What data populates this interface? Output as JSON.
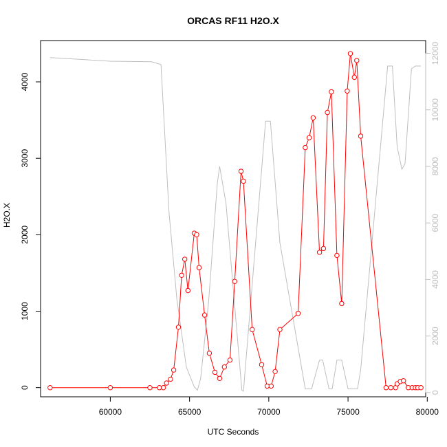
{
  "chart_data": {
    "type": "line",
    "title": "ORCAS RF11 H2O.X",
    "xlabel": "UTC Seconds",
    "ylabel": "H2O.X",
    "xlim": [
      55600,
      79900
    ],
    "ylim": [
      -120,
      4540
    ],
    "y2lim": [
      -150,
      12450
    ],
    "x_ticks": [
      60000,
      65000,
      70000,
      75000,
      80000
    ],
    "y_ticks": [
      0,
      1000,
      2000,
      3000,
      4000
    ],
    "y2_ticks": [
      0,
      2000,
      4000,
      6000,
      8000,
      10000,
      12000
    ],
    "colors": {
      "primary": "#ff0000",
      "secondary": "#bebebe",
      "axis": "#000000"
    },
    "series": [
      {
        "axis": "left",
        "color": "#ff0000",
        "style": "line+points",
        "points": [
          [
            56200,
            0
          ],
          [
            60000,
            0
          ],
          [
            62500,
            0
          ],
          [
            63100,
            0
          ],
          [
            63350,
            0
          ],
          [
            63550,
            60
          ],
          [
            63800,
            110
          ],
          [
            64000,
            230
          ],
          [
            64300,
            790
          ],
          [
            64500,
            1470
          ],
          [
            64700,
            1680
          ],
          [
            64900,
            1270
          ],
          [
            65300,
            2020
          ],
          [
            65450,
            2000
          ],
          [
            65600,
            1570
          ],
          [
            65950,
            950
          ],
          [
            66250,
            450
          ],
          [
            66600,
            200
          ],
          [
            66900,
            120
          ],
          [
            67200,
            270
          ],
          [
            67550,
            360
          ],
          [
            67850,
            1390
          ],
          [
            68250,
            2830
          ],
          [
            68400,
            2700
          ],
          [
            68950,
            760
          ],
          [
            69550,
            300
          ],
          [
            69900,
            20
          ],
          [
            70150,
            20
          ],
          [
            70400,
            210
          ],
          [
            70700,
            760
          ],
          [
            71850,
            970
          ],
          [
            72300,
            3140
          ],
          [
            72550,
            3270
          ],
          [
            72800,
            3530
          ],
          [
            73200,
            1770
          ],
          [
            73450,
            1820
          ],
          [
            73700,
            3600
          ],
          [
            73950,
            3870
          ],
          [
            74300,
            1730
          ],
          [
            74600,
            1100
          ],
          [
            74950,
            3880
          ],
          [
            75150,
            4370
          ],
          [
            75400,
            4060
          ],
          [
            75550,
            4280
          ],
          [
            75800,
            3290
          ],
          [
            77400,
            0
          ],
          [
            77700,
            0
          ],
          [
            78000,
            0
          ],
          [
            78100,
            50
          ],
          [
            78300,
            80
          ],
          [
            78500,
            90
          ],
          [
            78800,
            0
          ],
          [
            79050,
            0
          ],
          [
            79250,
            0
          ],
          [
            79400,
            0
          ],
          [
            79600,
            0
          ]
        ]
      },
      {
        "axis": "right",
        "color": "#bebebe",
        "style": "line",
        "points": [
          [
            56200,
            11850
          ],
          [
            60000,
            11720
          ],
          [
            62600,
            11700
          ],
          [
            63200,
            11600
          ],
          [
            63700,
            6400
          ],
          [
            64200,
            3300
          ],
          [
            64800,
            900
          ],
          [
            65300,
            200
          ],
          [
            65500,
            80
          ],
          [
            65700,
            500
          ],
          [
            66200,
            3200
          ],
          [
            66750,
            7400
          ],
          [
            66900,
            8000
          ],
          [
            67300,
            6700
          ],
          [
            68300,
            80
          ],
          [
            68400,
            50
          ],
          [
            69800,
            9600
          ],
          [
            70100,
            9600
          ],
          [
            70700,
            5300
          ],
          [
            72300,
            130
          ],
          [
            72700,
            130
          ],
          [
            73200,
            1150
          ],
          [
            73400,
            1150
          ],
          [
            73800,
            130
          ],
          [
            74000,
            130
          ],
          [
            74300,
            1150
          ],
          [
            74600,
            1150
          ],
          [
            75000,
            130
          ],
          [
            75600,
            130
          ],
          [
            75800,
            800
          ],
          [
            77500,
            11550
          ],
          [
            77800,
            11550
          ],
          [
            78100,
            8700
          ],
          [
            78400,
            7900
          ],
          [
            78600,
            8100
          ],
          [
            79000,
            11450
          ],
          [
            79250,
            11550
          ],
          [
            79600,
            11550
          ]
        ]
      }
    ]
  }
}
